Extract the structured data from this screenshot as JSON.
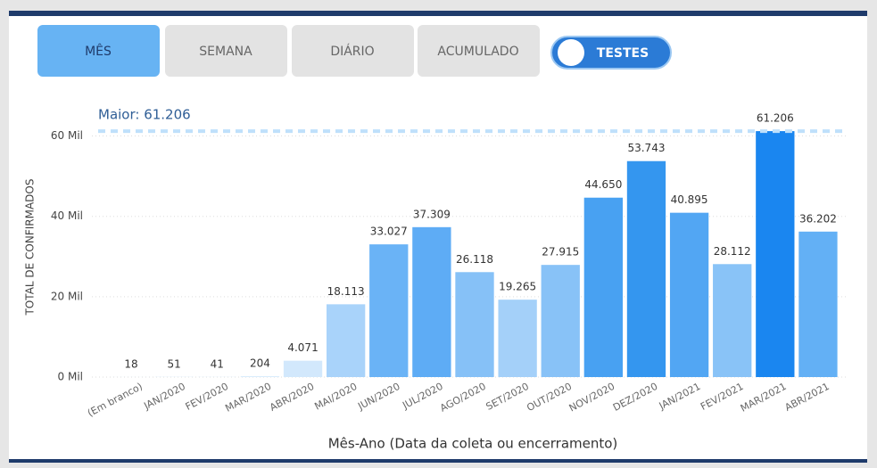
{
  "controls": {
    "buttons": [
      "MÊS",
      "SEMANA",
      "DIÁRIO",
      "ACUMULADO"
    ],
    "active": 0,
    "toggle": "TESTES"
  },
  "chart_data": {
    "type": "bar",
    "categories": [
      "(Em branco)",
      "JAN/2020",
      "FEV/2020",
      "MAR/2020",
      "ABR/2020",
      "MAI/2020",
      "JUN/2020",
      "JUL/2020",
      "AGO/2020",
      "SET/2020",
      "OUT/2020",
      "NOV/2020",
      "DEZ/2020",
      "JAN/2021",
      "FEV/2021",
      "MAR/2021",
      "ABR/2021"
    ],
    "values": [
      18,
      51,
      41,
      204,
      4071,
      18113,
      33027,
      37309,
      26118,
      19265,
      27915,
      44650,
      53743,
      40895,
      28112,
      61206,
      36202
    ],
    "value_labels": [
      "18",
      "51",
      "41",
      "204",
      "4.071",
      "18.113",
      "33.027",
      "37.309",
      "26.118",
      "19.265",
      "27.915",
      "44.650",
      "53.743",
      "40.895",
      "28.112",
      "61.206",
      "36.202"
    ],
    "colors": [
      "#d6eafc",
      "#d6eafc",
      "#d6eafc",
      "#d6eafc",
      "#d2e8fc",
      "#a9d3fa",
      "#6ab3f6",
      "#5eacf5",
      "#86c1f7",
      "#a4d0f9",
      "#88c2f7",
      "#48a1f2",
      "#3496ef",
      "#52a6f3",
      "#89c3f7",
      "#1a86f0",
      "#63b0f5"
    ],
    "ylim": [
      0,
      65000
    ],
    "yticks": [
      {
        "value": 0,
        "label": "0 Mil"
      },
      {
        "value": 20000,
        "label": "20 Mil"
      },
      {
        "value": 40000,
        "label": "40 Mil"
      },
      {
        "value": 60000,
        "label": "60 Mil"
      }
    ],
    "grid": true,
    "y_label": "TOTAL DE CONFIRMADOS",
    "x_label": "Mês-Ano (Data da coleta ou encerramento)",
    "max_line": {
      "label": "Maior: 61.206",
      "value": 61206
    }
  }
}
